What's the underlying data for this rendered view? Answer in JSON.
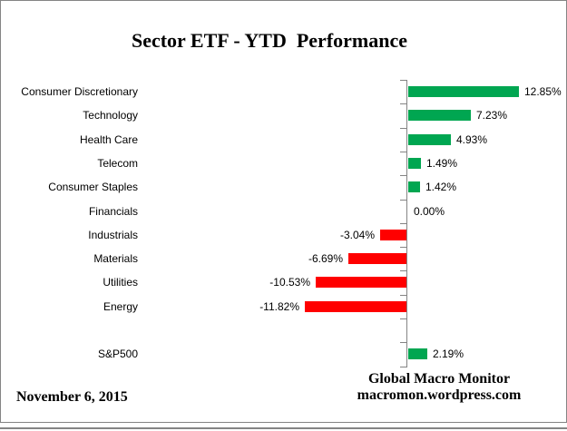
{
  "title": "Sector ETF - YTD  Performance",
  "chart_data": {
    "type": "bar",
    "orientation": "horizontal",
    "title": "Sector ETF - YTD  Performance",
    "categories": [
      "Consumer Discretionary",
      "Technology",
      "Health Care",
      "Telecom",
      "Consumer Staples",
      "Financials",
      "Industrials",
      "Materials",
      "Utilities",
      "Energy",
      "S&P500"
    ],
    "values": [
      12.85,
      7.23,
      4.93,
      1.49,
      1.42,
      0.0,
      -3.04,
      -6.69,
      -10.53,
      -11.82,
      2.19
    ],
    "value_labels": [
      "12.85%",
      "7.23%",
      "4.93%",
      "1.49%",
      "1.42%",
      "0.00%",
      "-3.04%",
      "-6.69%",
      "-10.53%",
      "-11.82%",
      "2.19%"
    ],
    "positive_color": "#00A651",
    "negative_color": "#FF0000",
    "axis_color": "#848484",
    "blank_row_before_last": true,
    "grid": false,
    "legend": false,
    "value_axis_shown": false
  },
  "footer": {
    "date": "November 6, 2015",
    "credit_line1": "Global Macro Monitor",
    "credit_line2": "macromon.wordpress.com"
  }
}
